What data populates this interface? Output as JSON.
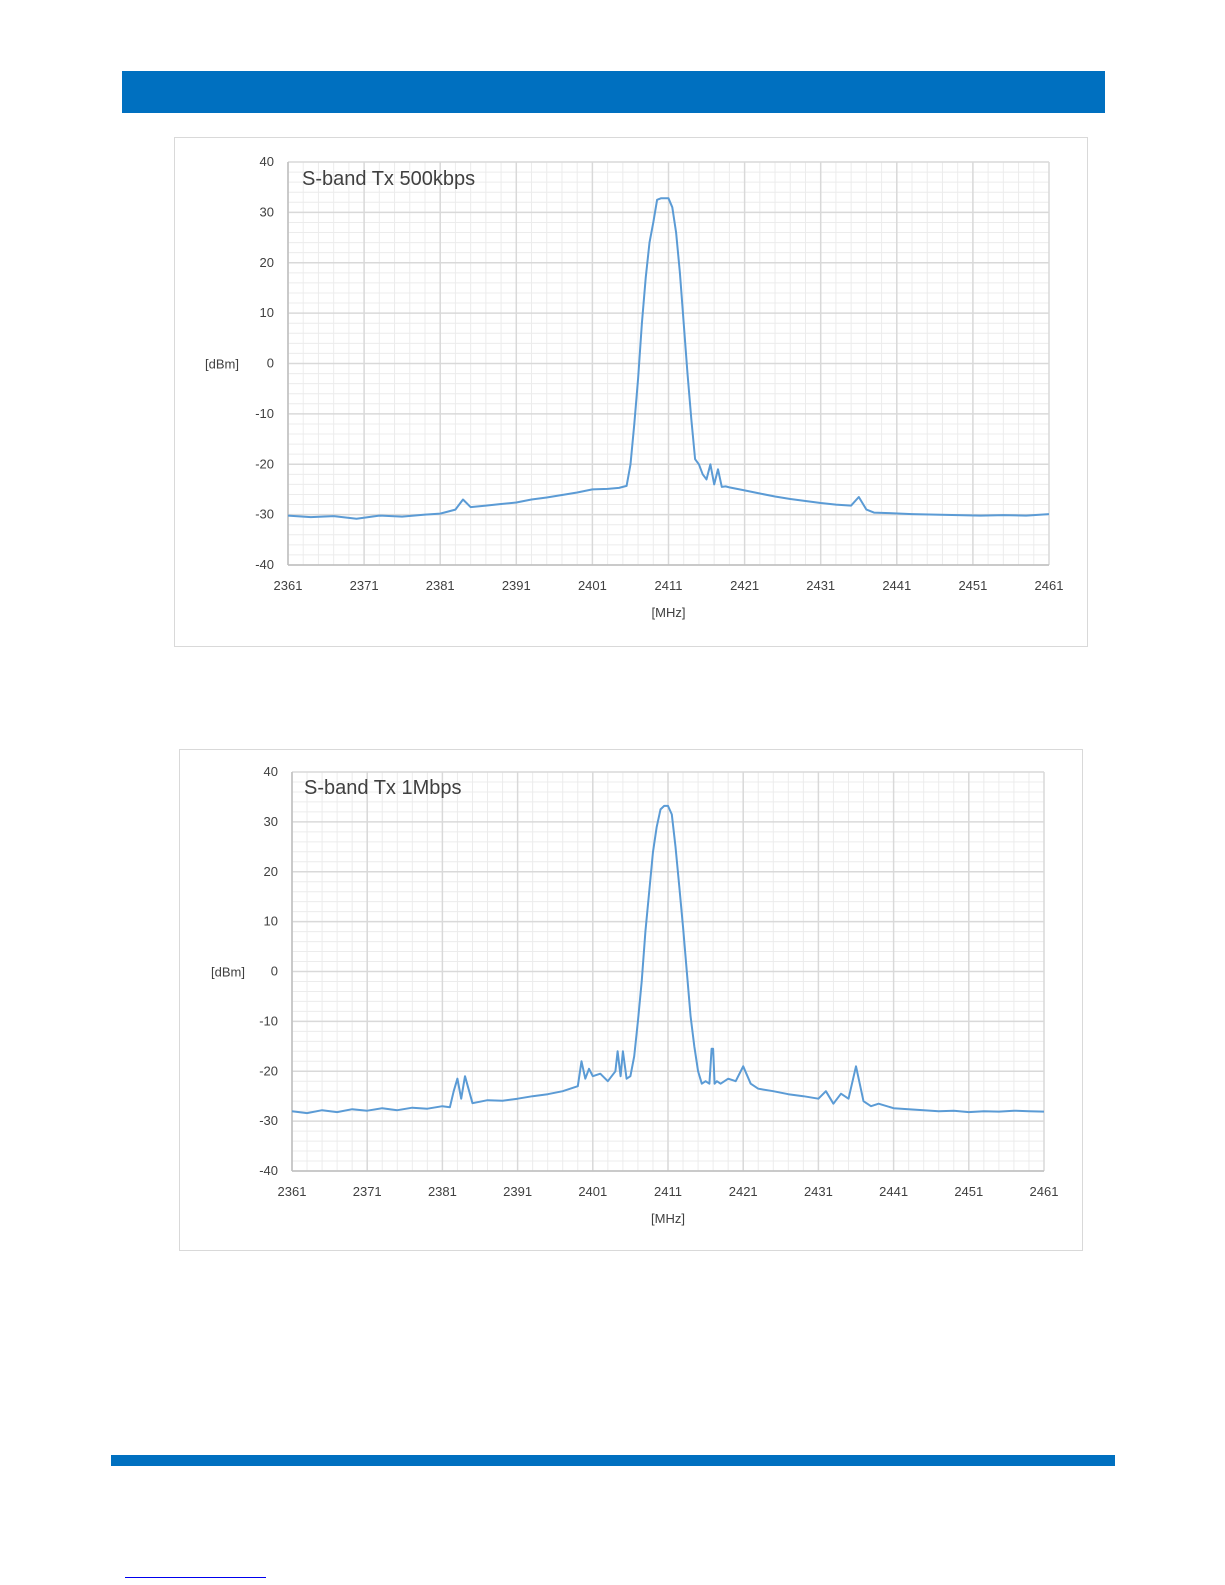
{
  "colors": {
    "brand_bar": "#0070c0",
    "series": "#5b9bd5",
    "major_grid": "#d9d9d9",
    "minor_grid": "#ececec"
  },
  "chart_data": [
    {
      "type": "line",
      "title": "S-band Tx 500kbps",
      "xlabel": "[MHz]",
      "ylabel": "[dBm]",
      "xlim": [
        2361,
        2461
      ],
      "ylim": [
        -40,
        40
      ],
      "x_ticks": [
        "2361",
        "2371",
        "2381",
        "2391",
        "2401",
        "2411",
        "2421",
        "2431",
        "2441",
        "2451",
        "2461"
      ],
      "y_ticks": [
        "40",
        "30",
        "20",
        "10",
        "0",
        "-10",
        "-20",
        "-30",
        "-40"
      ],
      "grid": true,
      "series": [
        {
          "x": [
            2361,
            2364,
            2367,
            2370,
            2373,
            2376,
            2379,
            2381,
            2383,
            2384,
            2385,
            2387,
            2389,
            2391,
            2393,
            2395,
            2397,
            2399,
            2401,
            2403,
            2404.5,
            2405.5,
            2406,
            2406.5,
            2407,
            2407.5,
            2408,
            2408.5,
            2409,
            2409.5,
            2410,
            2410.5,
            2411,
            2411.5,
            2412,
            2412.5,
            2413,
            2413.5,
            2414,
            2414.5,
            2415,
            2415.5,
            2416,
            2416.5,
            2417,
            2417.5,
            2418,
            2418.5,
            2419,
            2421,
            2423,
            2425,
            2427,
            2429,
            2431,
            2433,
            2435,
            2436,
            2437,
            2438,
            2440,
            2443,
            2446,
            2449,
            2452,
            2455,
            2458,
            2461
          ],
          "y": [
            -30.2,
            -30.5,
            -30.3,
            -30.8,
            -30.2,
            -30.4,
            -30.0,
            -29.8,
            -29.0,
            -27.0,
            -28.5,
            -28.2,
            -27.9,
            -27.6,
            -27.0,
            -26.6,
            -26.1,
            -25.6,
            -25.0,
            -24.9,
            -24.7,
            -24.3,
            -20,
            -12,
            -3,
            8,
            17,
            24,
            28,
            32.5,
            32.8,
            32.8,
            32.8,
            31,
            26,
            18,
            8,
            -2,
            -11,
            -19,
            -20,
            -22,
            -23,
            -20,
            -24,
            -21,
            -24.5,
            -24.4,
            -24.6,
            -25.2,
            -25.8,
            -26.4,
            -26.9,
            -27.3,
            -27.7,
            -28.0,
            -28.2,
            -26.5,
            -29.0,
            -29.6,
            -29.7,
            -29.9,
            -30.0,
            -30.1,
            -30.2,
            -30.1,
            -30.2,
            -29.9
          ]
        }
      ]
    },
    {
      "type": "line",
      "title": "S-band Tx 1Mbps",
      "xlabel": "[MHz]",
      "ylabel": "[dBm]",
      "xlim": [
        2361,
        2461
      ],
      "ylim": [
        -40,
        40
      ],
      "x_ticks": [
        "2361",
        "2371",
        "2381",
        "2391",
        "2401",
        "2411",
        "2421",
        "2431",
        "2441",
        "2451",
        "2461"
      ],
      "y_ticks": [
        "40",
        "30",
        "20",
        "10",
        "0",
        "-10",
        "-20",
        "-30",
        "-40"
      ],
      "grid": true,
      "series": [
        {
          "x": [
            2361,
            2363,
            2365,
            2367,
            2369,
            2371,
            2373,
            2375,
            2377,
            2379,
            2381,
            2382,
            2382.5,
            2383,
            2383.5,
            2384,
            2385,
            2387,
            2389,
            2391,
            2393,
            2395,
            2397,
            2399,
            2399.5,
            2400,
            2400.5,
            2401,
            2402,
            2403,
            2404,
            2404.3,
            2404.7,
            2405,
            2405.5,
            2406,
            2406.5,
            2407,
            2407.5,
            2408,
            2408.5,
            2409,
            2409.5,
            2410,
            2410.5,
            2411,
            2411.5,
            2412,
            2412.5,
            2413,
            2413.5,
            2414,
            2414.5,
            2415,
            2415.5,
            2416,
            2416.5,
            2416.8,
            2417,
            2417.2,
            2417.5,
            2418,
            2419,
            2420,
            2421,
            2422,
            2423,
            2425,
            2427,
            2429,
            2431,
            2432,
            2433,
            2434,
            2435,
            2436,
            2437,
            2438,
            2439,
            2441,
            2443,
            2445,
            2447,
            2449,
            2451,
            2453,
            2455,
            2457,
            2459,
            2461
          ],
          "y": [
            -28.0,
            -28.4,
            -27.8,
            -28.2,
            -27.6,
            -27.9,
            -27.4,
            -27.8,
            -27.3,
            -27.5,
            -27.0,
            -27.2,
            -24.0,
            -21.5,
            -25.5,
            -21.0,
            -26.4,
            -25.8,
            -25.9,
            -25.5,
            -25.0,
            -24.6,
            -24.0,
            -23.0,
            -18.0,
            -21.5,
            -19.5,
            -21.0,
            -20.5,
            -22.0,
            -20.0,
            -16.0,
            -21.0,
            -16.0,
            -21.5,
            -21.0,
            -17.0,
            -10.0,
            -2.0,
            8.0,
            16.0,
            24.0,
            29.0,
            32.5,
            33.2,
            33.2,
            31.5,
            25.0,
            17.0,
            9.0,
            0.0,
            -9.0,
            -15.0,
            -20.0,
            -22.5,
            -22.0,
            -22.5,
            -15.5,
            -15.5,
            -22.5,
            -22.0,
            -22.5,
            -21.5,
            -22.0,
            -19.0,
            -22.5,
            -23.5,
            -24.0,
            -24.6,
            -25.0,
            -25.5,
            -24.0,
            -26.5,
            -24.5,
            -25.5,
            -19.0,
            -26.0,
            -27.0,
            -26.5,
            -27.4,
            -27.6,
            -27.8,
            -28.0,
            -27.9,
            -28.2,
            -28.0,
            -28.1,
            -27.9,
            -28.0,
            -28.1
          ]
        }
      ]
    }
  ]
}
